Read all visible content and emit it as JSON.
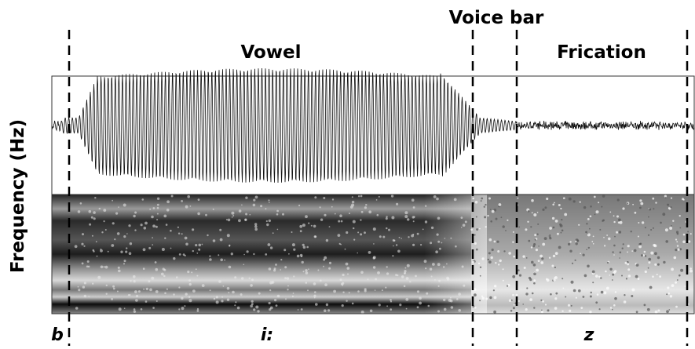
{
  "header": {
    "voice_bar": "Voice bar",
    "vowel": "Vowel",
    "frication": "Frication"
  },
  "axis": {
    "y_label": "Frequency (Hz)"
  },
  "segments": [
    "b",
    "i:",
    "z"
  ]
}
